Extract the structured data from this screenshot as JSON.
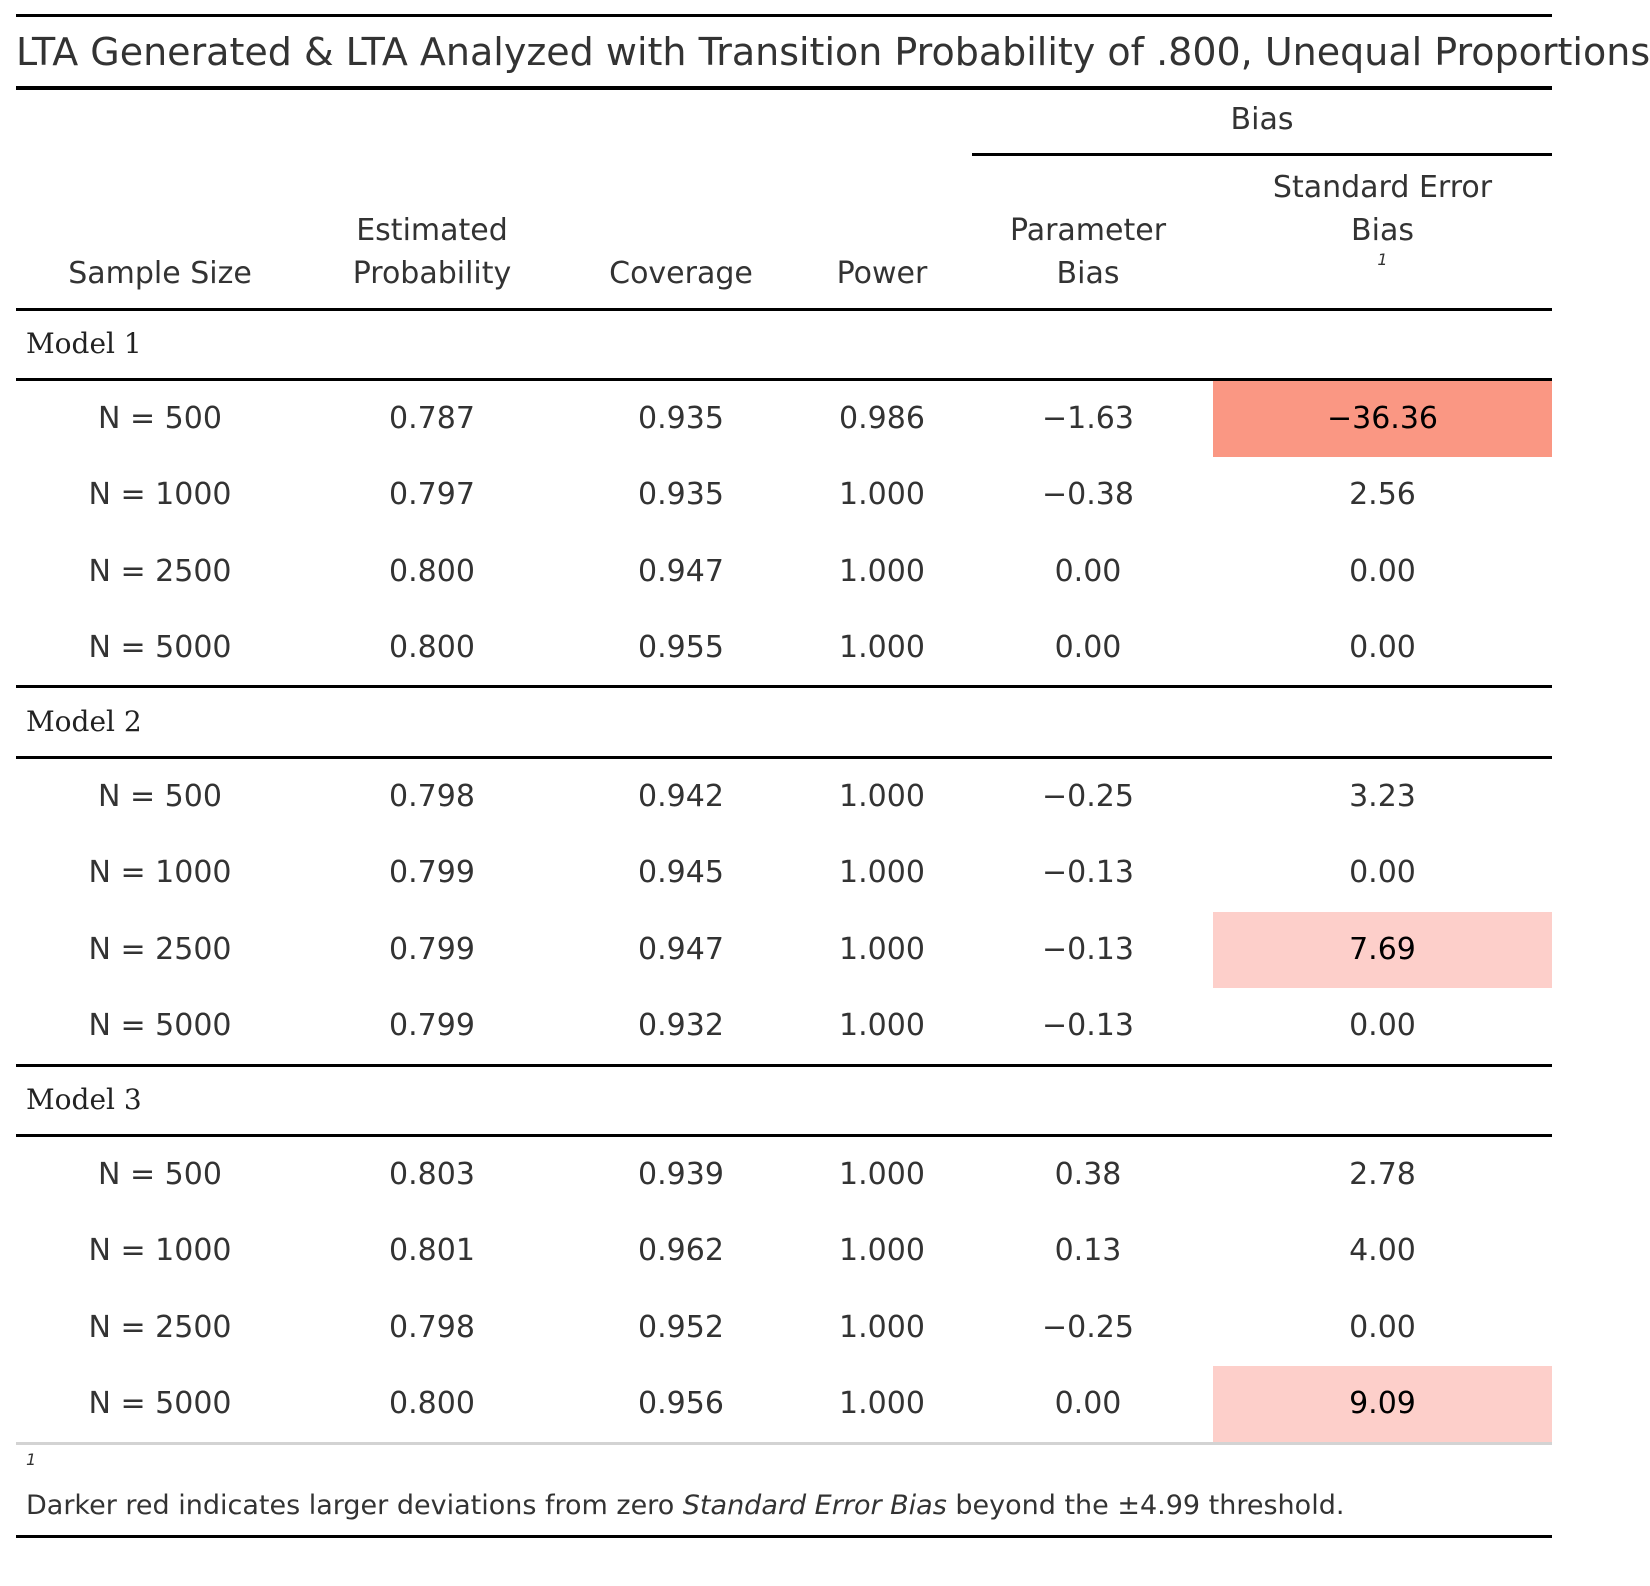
{
  "title": "LTA Generated & LTA Analyzed with Transition Probability of .800, Unequal Proportions",
  "spanner_label": "Bias",
  "columns": {
    "sample_size": "Sample Size",
    "estimated_probability_line1": "Estimated",
    "estimated_probability_line2": "Probability",
    "coverage": "Coverage",
    "power": "Power",
    "parameter_bias_line1": "Parameter",
    "parameter_bias_line2": "Bias",
    "se_bias_line1": "Standard Error",
    "se_bias_line2": "Bias",
    "se_bias_footnote_mark": "1"
  },
  "colors": {
    "strong_red": "#FA9783",
    "light_red": "#FDCFCA"
  },
  "groups": [
    {
      "label": "Model 1",
      "rows": [
        {
          "n": "N = 500",
          "est": "0.787",
          "cov": "0.935",
          "pow": "0.986",
          "pbias": "−1.63",
          "sebias": "−36.36",
          "highlight": "strong"
        },
        {
          "n": "N = 1000",
          "est": "0.797",
          "cov": "0.935",
          "pow": "1.000",
          "pbias": "−0.38",
          "sebias": "2.56",
          "highlight": "none"
        },
        {
          "n": "N = 2500",
          "est": "0.800",
          "cov": "0.947",
          "pow": "1.000",
          "pbias": "0.00",
          "sebias": "0.00",
          "highlight": "none"
        },
        {
          "n": "N = 5000",
          "est": "0.800",
          "cov": "0.955",
          "pow": "1.000",
          "pbias": "0.00",
          "sebias": "0.00",
          "highlight": "none"
        }
      ]
    },
    {
      "label": "Model 2",
      "rows": [
        {
          "n": "N = 500",
          "est": "0.798",
          "cov": "0.942",
          "pow": "1.000",
          "pbias": "−0.25",
          "sebias": "3.23",
          "highlight": "none"
        },
        {
          "n": "N = 1000",
          "est": "0.799",
          "cov": "0.945",
          "pow": "1.000",
          "pbias": "−0.13",
          "sebias": "0.00",
          "highlight": "none"
        },
        {
          "n": "N = 2500",
          "est": "0.799",
          "cov": "0.947",
          "pow": "1.000",
          "pbias": "−0.13",
          "sebias": "7.69",
          "highlight": "light"
        },
        {
          "n": "N = 5000",
          "est": "0.799",
          "cov": "0.932",
          "pow": "1.000",
          "pbias": "−0.13",
          "sebias": "0.00",
          "highlight": "none"
        }
      ]
    },
    {
      "label": "Model 3",
      "rows": [
        {
          "n": "N = 500",
          "est": "0.803",
          "cov": "0.939",
          "pow": "1.000",
          "pbias": "0.38",
          "sebias": "2.78",
          "highlight": "none"
        },
        {
          "n": "N = 1000",
          "est": "0.801",
          "cov": "0.962",
          "pow": "1.000",
          "pbias": "0.13",
          "sebias": "4.00",
          "highlight": "none"
        },
        {
          "n": "N = 2500",
          "est": "0.798",
          "cov": "0.952",
          "pow": "1.000",
          "pbias": "−0.25",
          "sebias": "0.00",
          "highlight": "none"
        },
        {
          "n": "N = 5000",
          "est": "0.800",
          "cov": "0.956",
          "pow": "1.000",
          "pbias": "0.00",
          "sebias": "9.09",
          "highlight": "light"
        }
      ]
    }
  ],
  "footnote": {
    "mark": "1",
    "text_before": "Darker red indicates larger deviations from zero ",
    "text_italic": "Standard Error Bias",
    "text_after": " beyond the ±4.99 threshold."
  }
}
